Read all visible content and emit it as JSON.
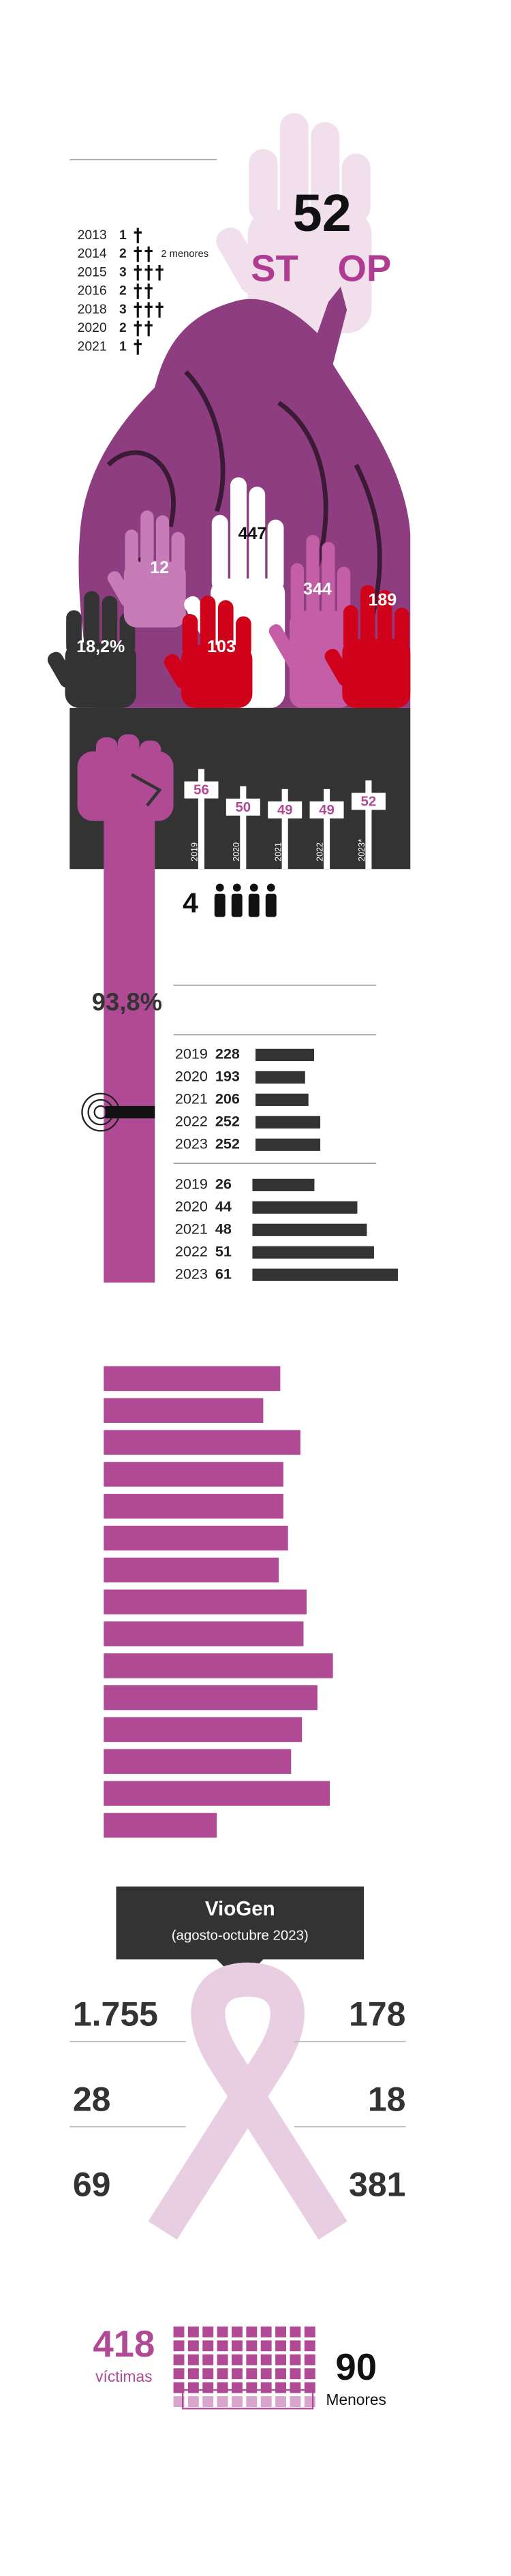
{
  "timeline": {
    "rows": [
      {
        "year": "2013",
        "count": 1
      },
      {
        "year": "2014",
        "count": 2
      },
      {
        "year": "2015",
        "count": 3
      },
      {
        "year": "2016",
        "count": 2
      },
      {
        "year": "2018",
        "count": 3
      },
      {
        "year": "2020",
        "count": 2
      },
      {
        "year": "2021",
        "count": 1
      }
    ],
    "note": "2 menores"
  },
  "stop": {
    "number": 52,
    "word_left": "ST",
    "word_right": "OP"
  },
  "hands": [
    "18,2%",
    12,
    447,
    344,
    103,
    189
  ],
  "crosses": {
    "years": [
      "2019",
      "2020",
      "2021",
      "2022",
      "2023*"
    ],
    "values": [
      56,
      50,
      49,
      49,
      52
    ]
  },
  "people": {
    "count": 4
  },
  "percent": "93,8%",
  "bars_a": {
    "years": [
      "2019",
      "2020",
      "2021",
      "2022",
      "2023"
    ],
    "values": [
      228,
      193,
      206,
      252,
      252
    ]
  },
  "bars_b": {
    "years": [
      "2019",
      "2020",
      "2021",
      "2022",
      "2023"
    ],
    "values": [
      26,
      44,
      48,
      51,
      61
    ]
  },
  "purple_bars": {
    "values": [
      114,
      103,
      127,
      116,
      116,
      119,
      113,
      131,
      129,
      148,
      138,
      128,
      121,
      146,
      73
    ]
  },
  "viogen": {
    "title": "VioGen",
    "subtitle": "(agosto-octubre 2023)",
    "left": [
      "1.755",
      28,
      69
    ],
    "right": [
      178,
      18,
      381
    ]
  },
  "footer": {
    "victims": 418,
    "victims_label": "víctimas",
    "minors": 90,
    "minors_label": "Menores"
  }
}
